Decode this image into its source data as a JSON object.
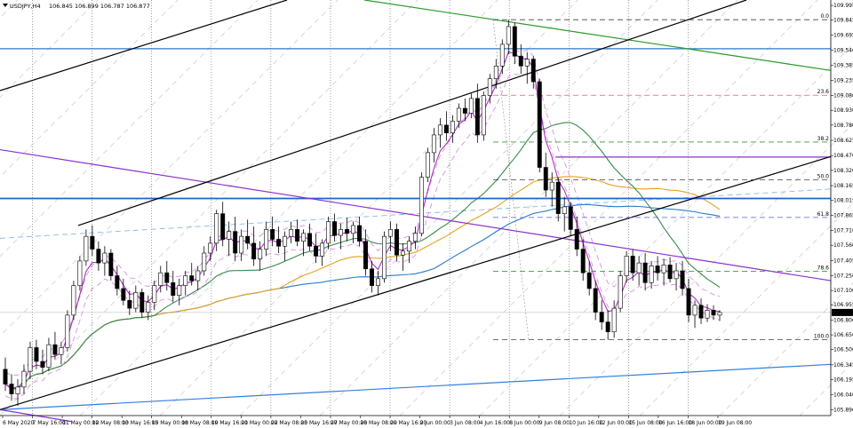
{
  "header": {
    "symbol_label": "USDJPY,H4",
    "ohlc": "106.845 106.899 106.787 106.877"
  },
  "chart_data": {
    "type": "candlestick",
    "title": "USDJPY,H4",
    "x_tick_labels": [
      "6 May 2020",
      "7 May 16:00",
      "11 May 00:00",
      "12 May 08:00",
      "13 May 16:00",
      "15 May 00:00",
      "18 May 08:00",
      "19 May 16:00",
      "21 May 00:00",
      "22 May 08:00",
      "25 May 16:00",
      "27 May 00:00",
      "28 May 08:00",
      "29 May 16:00",
      "2 Jun 00:00",
      "3 Jun 08:00",
      "4 Jun 16:00",
      "8 Jun 00:00",
      "9 Jun 08:00",
      "10 Jun 16:00",
      "12 Jun 00:00",
      "15 Jun 08:00",
      "16 Jun 16:00",
      "18 Jun 00:00",
      "19 Jun 08:00"
    ],
    "y_tick_labels": [
      "109.995",
      "109.845",
      "109.695",
      "109.540",
      "109.385",
      "109.235",
      "109.080",
      "108.930",
      "108.780",
      "108.625",
      "108.470",
      "108.320",
      "108.165",
      "108.015",
      "107.865",
      "107.710",
      "107.560",
      "107.405",
      "107.250",
      "107.100",
      "106.955",
      "106.800",
      "106.650",
      "106.500",
      "106.345",
      "106.195",
      "106.040",
      "105.890"
    ],
    "ylim": [
      105.83,
      110.05
    ],
    "current_price": "106.877",
    "fibonacci": {
      "high": 109.85,
      "low": 106.6,
      "levels": [
        {
          "label": "0.0",
          "value": 109.85,
          "color": "#404040"
        },
        {
          "label": "23.6",
          "value": 109.083,
          "color": "#e06060"
        },
        {
          "label": "38.2",
          "value": 108.608,
          "color": "#3a9a3a"
        },
        {
          "label": "50.0",
          "value": 108.225,
          "color": "#404040"
        },
        {
          "label": "61.8",
          "value": 107.842,
          "color": "#5a5ad0"
        },
        {
          "label": "78.6",
          "value": 107.296,
          "color": "#3a9a3a"
        },
        {
          "label": "100.0",
          "value": 106.6,
          "color": "#404040"
        }
      ]
    },
    "candles": [
      {
        "o": 106.3,
        "h": 106.42,
        "l": 106.08,
        "c": 106.15
      },
      {
        "o": 106.15,
        "h": 106.25,
        "l": 105.98,
        "c": 106.05
      },
      {
        "o": 106.05,
        "h": 106.2,
        "l": 105.93,
        "c": 106.12
      },
      {
        "o": 106.12,
        "h": 106.35,
        "l": 106.05,
        "c": 106.28
      },
      {
        "o": 106.28,
        "h": 106.58,
        "l": 106.2,
        "c": 106.52
      },
      {
        "o": 106.52,
        "h": 106.6,
        "l": 106.3,
        "c": 106.38
      },
      {
        "o": 106.38,
        "h": 106.5,
        "l": 106.25,
        "c": 106.32
      },
      {
        "o": 106.32,
        "h": 106.62,
        "l": 106.28,
        "c": 106.55
      },
      {
        "o": 106.55,
        "h": 106.68,
        "l": 106.4,
        "c": 106.45
      },
      {
        "o": 106.45,
        "h": 106.58,
        "l": 106.35,
        "c": 106.52
      },
      {
        "o": 106.52,
        "h": 106.9,
        "l": 106.48,
        "c": 106.85
      },
      {
        "o": 106.85,
        "h": 107.2,
        "l": 106.8,
        "c": 107.15
      },
      {
        "o": 107.15,
        "h": 107.45,
        "l": 107.1,
        "c": 107.4
      },
      {
        "o": 107.4,
        "h": 107.72,
        "l": 107.35,
        "c": 107.65
      },
      {
        "o": 107.65,
        "h": 107.76,
        "l": 107.45,
        "c": 107.52
      },
      {
        "o": 107.52,
        "h": 107.6,
        "l": 107.3,
        "c": 107.38
      },
      {
        "o": 107.38,
        "h": 107.55,
        "l": 107.25,
        "c": 107.48
      },
      {
        "o": 107.48,
        "h": 107.52,
        "l": 107.2,
        "c": 107.25
      },
      {
        "o": 107.25,
        "h": 107.35,
        "l": 107.05,
        "c": 107.12
      },
      {
        "o": 107.12,
        "h": 107.22,
        "l": 106.95,
        "c": 107.0
      },
      {
        "o": 107.0,
        "h": 107.1,
        "l": 106.85,
        "c": 106.92
      },
      {
        "o": 106.92,
        "h": 107.15,
        "l": 106.88,
        "c": 107.08
      },
      {
        "o": 107.08,
        "h": 107.12,
        "l": 106.82,
        "c": 106.88
      },
      {
        "o": 106.88,
        "h": 107.05,
        "l": 106.8,
        "c": 106.98
      },
      {
        "o": 106.98,
        "h": 107.2,
        "l": 106.9,
        "c": 107.15
      },
      {
        "o": 107.15,
        "h": 107.35,
        "l": 107.08,
        "c": 107.28
      },
      {
        "o": 107.28,
        "h": 107.4,
        "l": 107.1,
        "c": 107.18
      },
      {
        "o": 107.18,
        "h": 107.3,
        "l": 106.98,
        "c": 107.05
      },
      {
        "o": 107.05,
        "h": 107.22,
        "l": 106.95,
        "c": 107.15
      },
      {
        "o": 107.15,
        "h": 107.3,
        "l": 107.05,
        "c": 107.25
      },
      {
        "o": 107.25,
        "h": 107.38,
        "l": 107.15,
        "c": 107.2
      },
      {
        "o": 107.2,
        "h": 107.35,
        "l": 107.1,
        "c": 107.3
      },
      {
        "o": 107.3,
        "h": 107.55,
        "l": 107.25,
        "c": 107.48
      },
      {
        "o": 107.48,
        "h": 107.65,
        "l": 107.4,
        "c": 107.58
      },
      {
        "o": 107.58,
        "h": 107.92,
        "l": 107.5,
        "c": 107.88
      },
      {
        "o": 107.88,
        "h": 108.0,
        "l": 107.55,
        "c": 107.62
      },
      {
        "o": 107.62,
        "h": 107.8,
        "l": 107.45,
        "c": 107.7
      },
      {
        "o": 107.7,
        "h": 107.85,
        "l": 107.4,
        "c": 107.48
      },
      {
        "o": 107.48,
        "h": 107.72,
        "l": 107.4,
        "c": 107.65
      },
      {
        "o": 107.65,
        "h": 107.82,
        "l": 107.52,
        "c": 107.58
      },
      {
        "o": 107.58,
        "h": 107.75,
        "l": 107.35,
        "c": 107.42
      },
      {
        "o": 107.42,
        "h": 107.6,
        "l": 107.3,
        "c": 107.52
      },
      {
        "o": 107.52,
        "h": 107.8,
        "l": 107.45,
        "c": 107.72
      },
      {
        "o": 107.72,
        "h": 107.85,
        "l": 107.55,
        "c": 107.62
      },
      {
        "o": 107.62,
        "h": 107.75,
        "l": 107.48,
        "c": 107.55
      },
      {
        "o": 107.55,
        "h": 107.7,
        "l": 107.4,
        "c": 107.65
      },
      {
        "o": 107.65,
        "h": 107.8,
        "l": 107.58,
        "c": 107.72
      },
      {
        "o": 107.72,
        "h": 107.82,
        "l": 107.55,
        "c": 107.6
      },
      {
        "o": 107.6,
        "h": 107.72,
        "l": 107.45,
        "c": 107.68
      },
      {
        "o": 107.68,
        "h": 107.78,
        "l": 107.5,
        "c": 107.55
      },
      {
        "o": 107.55,
        "h": 107.68,
        "l": 107.38,
        "c": 107.45
      },
      {
        "o": 107.45,
        "h": 107.62,
        "l": 107.35,
        "c": 107.58
      },
      {
        "o": 107.58,
        "h": 107.85,
        "l": 107.52,
        "c": 107.8
      },
      {
        "o": 107.8,
        "h": 107.88,
        "l": 107.6,
        "c": 107.66
      },
      {
        "o": 107.66,
        "h": 107.78,
        "l": 107.52,
        "c": 107.72
      },
      {
        "o": 107.72,
        "h": 107.84,
        "l": 107.6,
        "c": 107.68
      },
      {
        "o": 107.68,
        "h": 107.8,
        "l": 107.58,
        "c": 107.76
      },
      {
        "o": 107.76,
        "h": 107.85,
        "l": 107.55,
        "c": 107.6
      },
      {
        "o": 107.6,
        "h": 107.72,
        "l": 107.25,
        "c": 107.32
      },
      {
        "o": 107.32,
        "h": 107.4,
        "l": 107.08,
        "c": 107.15
      },
      {
        "o": 107.15,
        "h": 107.3,
        "l": 107.05,
        "c": 107.22
      },
      {
        "o": 107.22,
        "h": 107.7,
        "l": 107.18,
        "c": 107.65
      },
      {
        "o": 107.65,
        "h": 107.8,
        "l": 107.5,
        "c": 107.72
      },
      {
        "o": 107.72,
        "h": 107.78,
        "l": 107.4,
        "c": 107.46
      },
      {
        "o": 107.46,
        "h": 107.58,
        "l": 107.3,
        "c": 107.5
      },
      {
        "o": 107.5,
        "h": 107.65,
        "l": 107.38,
        "c": 107.6
      },
      {
        "o": 107.6,
        "h": 107.75,
        "l": 107.52,
        "c": 107.68
      },
      {
        "o": 107.68,
        "h": 108.3,
        "l": 107.65,
        "c": 108.25
      },
      {
        "o": 108.25,
        "h": 108.55,
        "l": 108.2,
        "c": 108.5
      },
      {
        "o": 108.5,
        "h": 108.75,
        "l": 108.4,
        "c": 108.68
      },
      {
        "o": 108.68,
        "h": 108.85,
        "l": 108.55,
        "c": 108.78
      },
      {
        "o": 108.78,
        "h": 108.92,
        "l": 108.62,
        "c": 108.7
      },
      {
        "o": 108.7,
        "h": 108.88,
        "l": 108.6,
        "c": 108.82
      },
      {
        "o": 108.82,
        "h": 109.0,
        "l": 108.75,
        "c": 108.95
      },
      {
        "o": 108.95,
        "h": 109.05,
        "l": 108.82,
        "c": 108.9
      },
      {
        "o": 108.9,
        "h": 109.1,
        "l": 108.85,
        "c": 109.05
      },
      {
        "o": 109.05,
        "h": 109.2,
        "l": 108.6,
        "c": 108.68
      },
      {
        "o": 108.68,
        "h": 109.12,
        "l": 108.62,
        "c": 109.08
      },
      {
        "o": 109.08,
        "h": 109.3,
        "l": 109.0,
        "c": 109.25
      },
      {
        "o": 109.25,
        "h": 109.45,
        "l": 109.15,
        "c": 109.38
      },
      {
        "o": 109.38,
        "h": 109.65,
        "l": 109.3,
        "c": 109.6
      },
      {
        "o": 109.6,
        "h": 109.85,
        "l": 109.5,
        "c": 109.78
      },
      {
        "o": 109.78,
        "h": 109.82,
        "l": 109.4,
        "c": 109.48
      },
      {
        "o": 109.48,
        "h": 109.6,
        "l": 109.3,
        "c": 109.38
      },
      {
        "o": 109.38,
        "h": 109.52,
        "l": 109.2,
        "c": 109.45
      },
      {
        "o": 109.45,
        "h": 109.48,
        "l": 109.15,
        "c": 109.22
      },
      {
        "o": 109.22,
        "h": 109.25,
        "l": 108.3,
        "c": 108.35
      },
      {
        "o": 108.35,
        "h": 108.5,
        "l": 108.05,
        "c": 108.12
      },
      {
        "o": 108.12,
        "h": 108.3,
        "l": 107.95,
        "c": 108.2
      },
      {
        "o": 108.2,
        "h": 108.25,
        "l": 107.8,
        "c": 107.88
      },
      {
        "o": 107.88,
        "h": 108.05,
        "l": 107.7,
        "c": 107.95
      },
      {
        "o": 107.95,
        "h": 108.0,
        "l": 107.65,
        "c": 107.72
      },
      {
        "o": 107.72,
        "h": 107.85,
        "l": 107.45,
        "c": 107.52
      },
      {
        "o": 107.52,
        "h": 107.62,
        "l": 107.2,
        "c": 107.28
      },
      {
        "o": 107.28,
        "h": 107.4,
        "l": 107.05,
        "c": 107.12
      },
      {
        "o": 107.12,
        "h": 107.2,
        "l": 106.8,
        "c": 106.88
      },
      {
        "o": 106.88,
        "h": 107.0,
        "l": 106.7,
        "c": 106.78
      },
      {
        "o": 106.78,
        "h": 106.9,
        "l": 106.6,
        "c": 106.68
      },
      {
        "o": 106.68,
        "h": 107.0,
        "l": 106.62,
        "c": 106.92
      },
      {
        "o": 106.92,
        "h": 107.3,
        "l": 106.88,
        "c": 107.25
      },
      {
        "o": 107.25,
        "h": 107.5,
        "l": 107.18,
        "c": 107.45
      },
      {
        "o": 107.45,
        "h": 107.52,
        "l": 107.2,
        "c": 107.28
      },
      {
        "o": 107.28,
        "h": 107.45,
        "l": 107.15,
        "c": 107.38
      },
      {
        "o": 107.38,
        "h": 107.48,
        "l": 107.1,
        "c": 107.18
      },
      {
        "o": 107.18,
        "h": 107.4,
        "l": 107.12,
        "c": 107.35
      },
      {
        "o": 107.35,
        "h": 107.45,
        "l": 107.2,
        "c": 107.28
      },
      {
        "o": 107.28,
        "h": 107.42,
        "l": 107.15,
        "c": 107.36
      },
      {
        "o": 107.36,
        "h": 107.44,
        "l": 107.18,
        "c": 107.22
      },
      {
        "o": 107.22,
        "h": 107.38,
        "l": 107.1,
        "c": 107.3
      },
      {
        "o": 107.3,
        "h": 107.4,
        "l": 107.05,
        "c": 107.12
      },
      {
        "o": 107.12,
        "h": 107.22,
        "l": 106.78,
        "c": 106.85
      },
      {
        "o": 106.85,
        "h": 107.0,
        "l": 106.72,
        "c": 106.95
      },
      {
        "o": 106.95,
        "h": 107.02,
        "l": 106.76,
        "c": 106.82
      },
      {
        "o": 106.82,
        "h": 106.96,
        "l": 106.78,
        "c": 106.9
      },
      {
        "o": 106.9,
        "h": 106.95,
        "l": 106.8,
        "c": 106.85
      },
      {
        "o": 106.85,
        "h": 106.9,
        "l": 106.79,
        "c": 106.877
      }
    ]
  },
  "colors": {
    "bull_body": "#ffffff",
    "bear_body": "#000000",
    "candle_outline": "#000000",
    "grid": "#c0c0c0",
    "channel": "#000000",
    "ma_magenta": "#b030c0",
    "ma_green": "#3a8a4a",
    "ma_orange": "#e8a020",
    "ma_blue": "#2a7ac8",
    "horizontal_blue": "#2060d0",
    "trend_green": "#2a9a2a",
    "trend_purple": "#8a30d0",
    "support_blue": "#3080e0"
  }
}
